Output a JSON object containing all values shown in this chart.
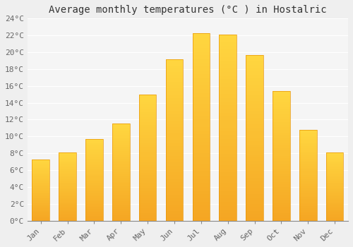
{
  "title": "Average monthly temperatures (°C ) in Hostalric",
  "months": [
    "Jan",
    "Feb",
    "Mar",
    "Apr",
    "May",
    "Jun",
    "Jul",
    "Aug",
    "Sep",
    "Oct",
    "Nov",
    "Dec"
  ],
  "temperatures": [
    7.3,
    8.1,
    9.7,
    11.5,
    15.0,
    19.2,
    22.3,
    22.1,
    19.7,
    15.4,
    10.8,
    8.1
  ],
  "bar_color_bottom": "#F5A623",
  "bar_color_top": "#FFD740",
  "bar_edge_color": "#E8960A",
  "ylim": [
    0,
    24
  ],
  "ytick_step": 2,
  "background_color": "#efefef",
  "plot_bg_color": "#f5f5f5",
  "grid_color": "#ffffff",
  "title_fontsize": 10,
  "tick_fontsize": 8,
  "font_family": "monospace"
}
